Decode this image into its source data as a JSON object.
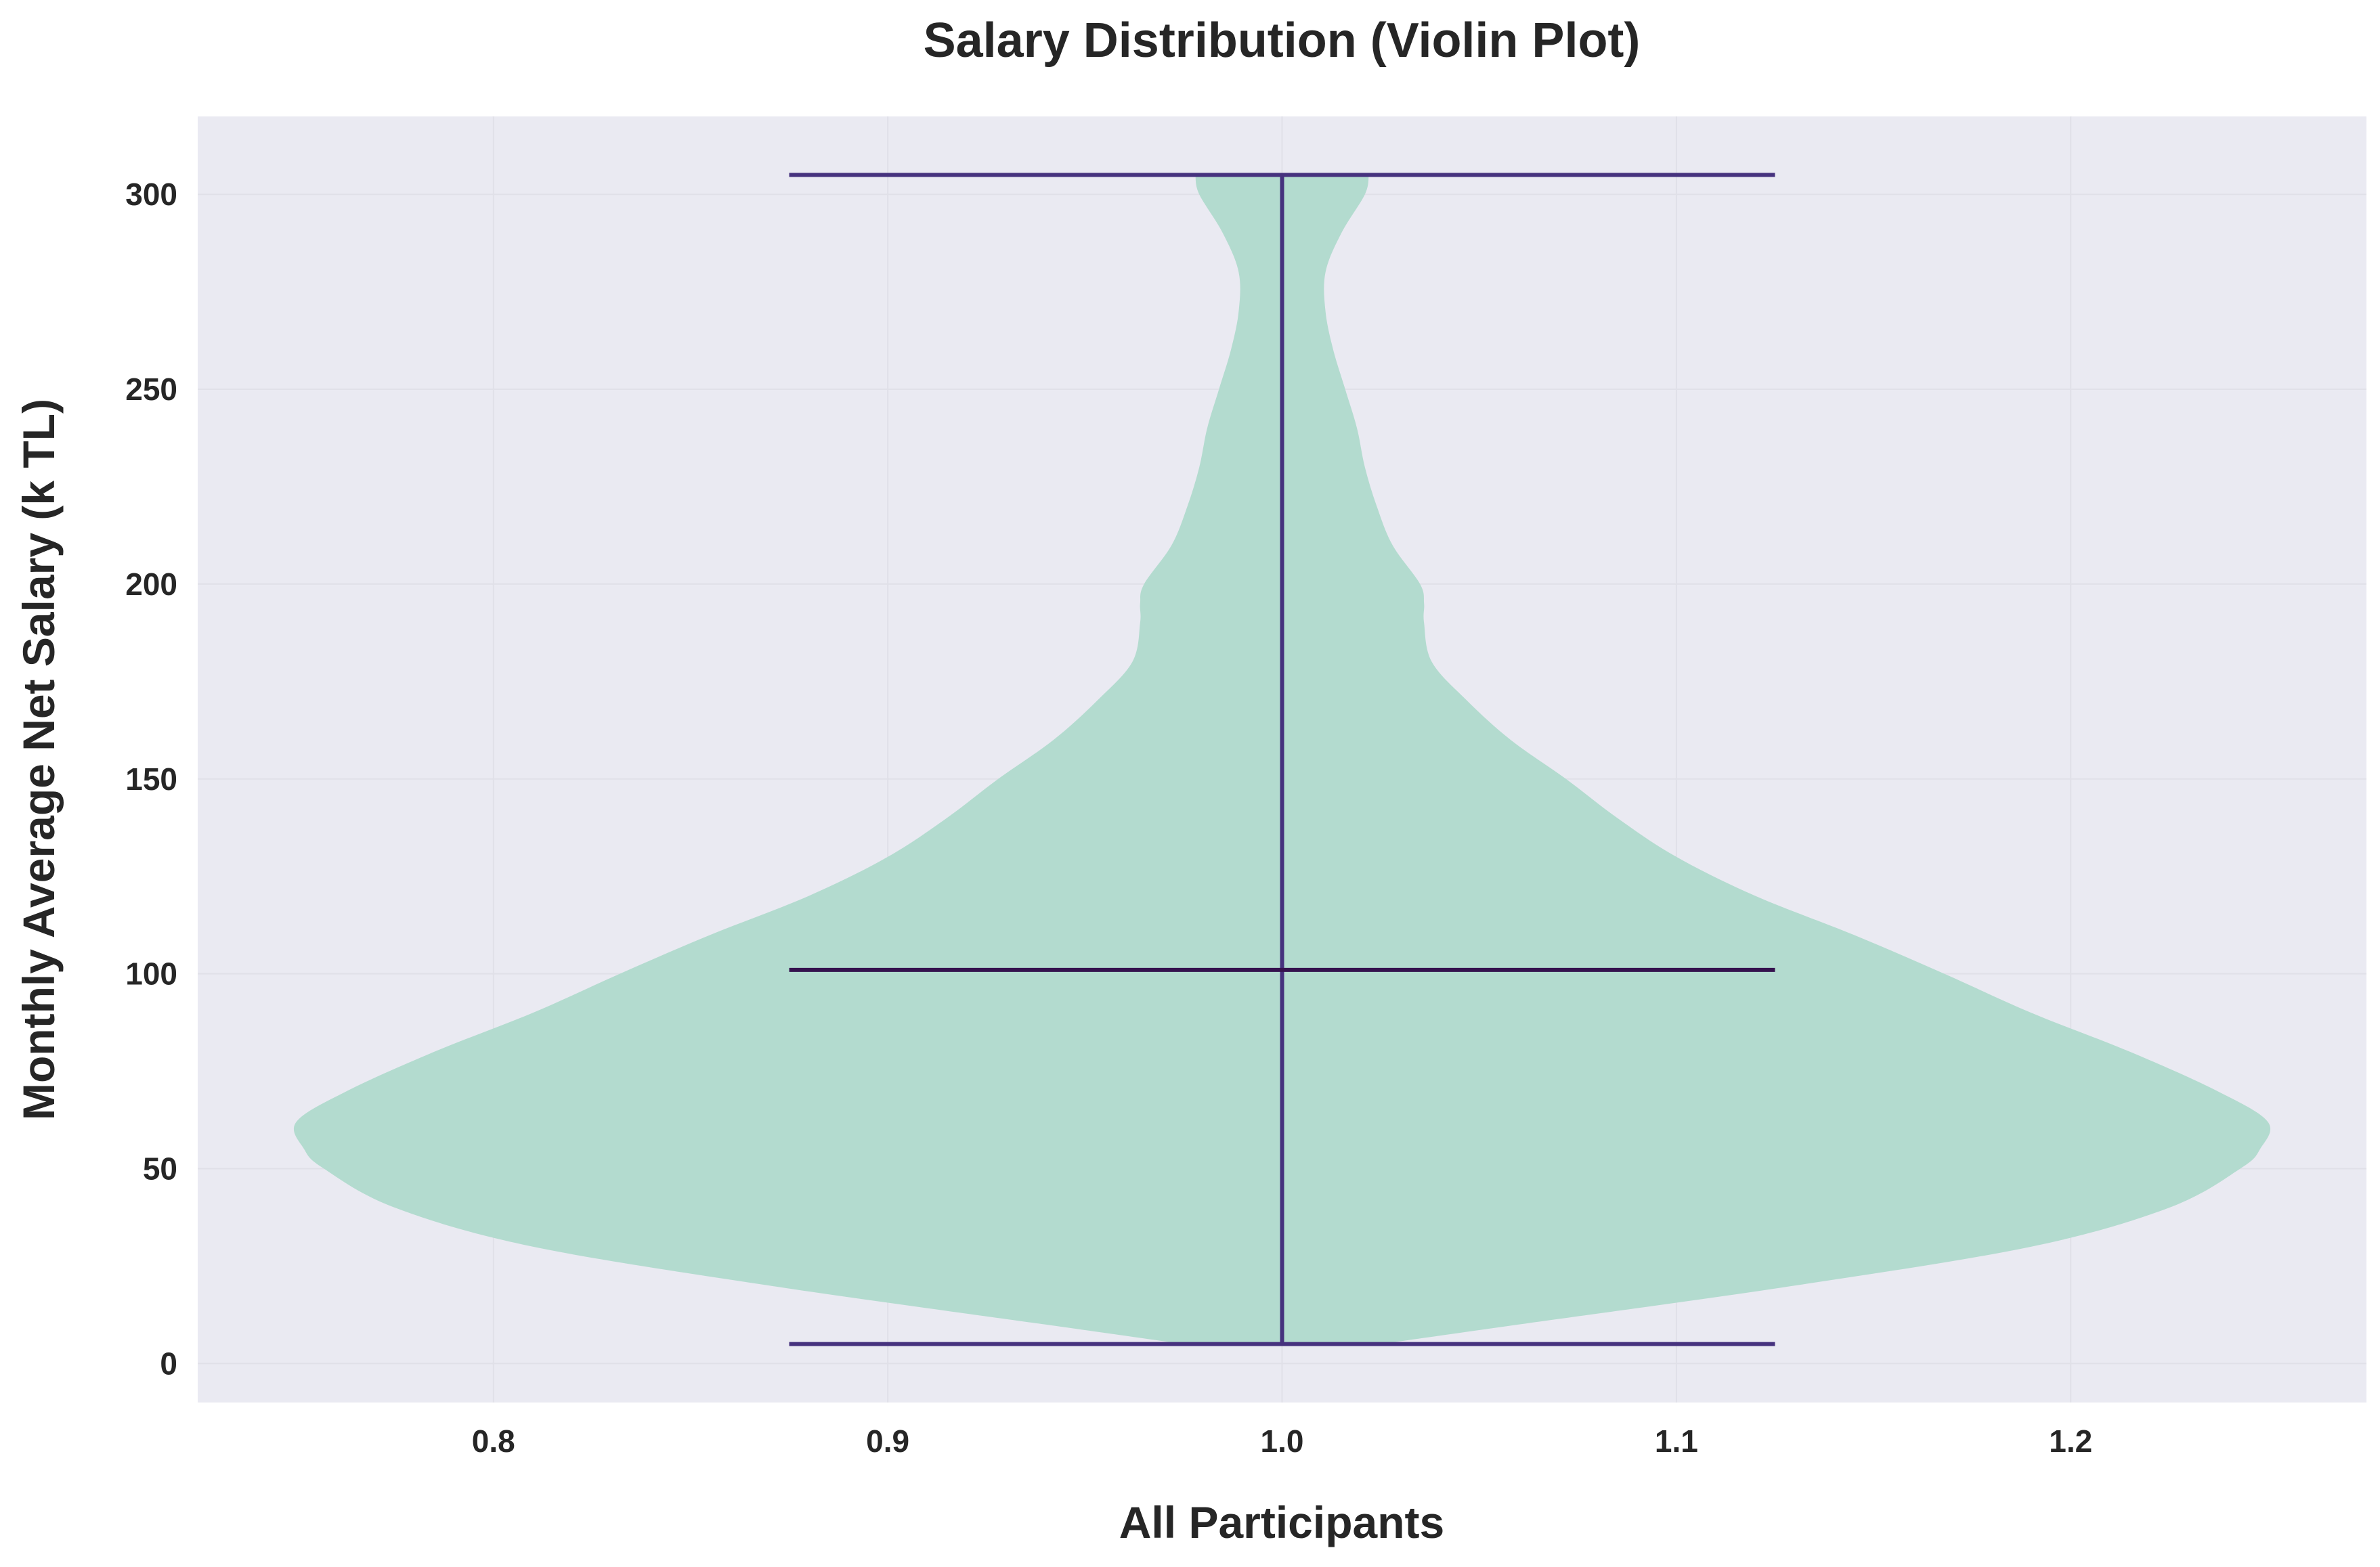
{
  "chart_data": {
    "type": "violin",
    "title": "Salary Distribution (Violin Plot)",
    "xlabel": "All Participants",
    "ylabel": "Monthly Average Net Salary (k TL)",
    "xlim": [
      0.725,
      1.275
    ],
    "ylim": [
      -10,
      320
    ],
    "xticks": [
      "0.8",
      "0.9",
      "1.0",
      "1.1",
      "1.2"
    ],
    "xtick_values": [
      0.8,
      0.9,
      1.0,
      1.1,
      1.2
    ],
    "yticks": [
      "0",
      "50",
      "100",
      "150",
      "200",
      "250",
      "300"
    ],
    "ytick_values": [
      0,
      50,
      100,
      150,
      200,
      250,
      300
    ],
    "grid": true,
    "violin": {
      "position": 1.0,
      "min": 5,
      "median": 101,
      "max": 305,
      "whisker_halfwidth": 0.125,
      "density_profile": [
        {
          "y": 5,
          "halfwidth": 0.025
        },
        {
          "y": 10,
          "halfwidth": 0.06
        },
        {
          "y": 20,
          "halfwidth": 0.13
        },
        {
          "y": 30,
          "halfwidth": 0.19
        },
        {
          "y": 40,
          "halfwidth": 0.225
        },
        {
          "y": 50,
          "halfwidth": 0.243
        },
        {
          "y": 55,
          "halfwidth": 0.248
        },
        {
          "y": 62,
          "halfwidth": 0.25
        },
        {
          "y": 70,
          "halfwidth": 0.237
        },
        {
          "y": 80,
          "halfwidth": 0.215
        },
        {
          "y": 90,
          "halfwidth": 0.19
        },
        {
          "y": 100,
          "halfwidth": 0.168
        },
        {
          "y": 110,
          "halfwidth": 0.145
        },
        {
          "y": 120,
          "halfwidth": 0.12
        },
        {
          "y": 130,
          "halfwidth": 0.1
        },
        {
          "y": 140,
          "halfwidth": 0.085
        },
        {
          "y": 150,
          "halfwidth": 0.072
        },
        {
          "y": 160,
          "halfwidth": 0.058
        },
        {
          "y": 170,
          "halfwidth": 0.047
        },
        {
          "y": 180,
          "halfwidth": 0.038
        },
        {
          "y": 190,
          "halfwidth": 0.036
        },
        {
          "y": 195,
          "halfwidth": 0.036
        },
        {
          "y": 200,
          "halfwidth": 0.035
        },
        {
          "y": 210,
          "halfwidth": 0.028
        },
        {
          "y": 220,
          "halfwidth": 0.024
        },
        {
          "y": 230,
          "halfwidth": 0.021
        },
        {
          "y": 240,
          "halfwidth": 0.019
        },
        {
          "y": 250,
          "halfwidth": 0.016
        },
        {
          "y": 260,
          "halfwidth": 0.013
        },
        {
          "y": 270,
          "halfwidth": 0.011
        },
        {
          "y": 280,
          "halfwidth": 0.011
        },
        {
          "y": 290,
          "halfwidth": 0.015
        },
        {
          "y": 300,
          "halfwidth": 0.021
        },
        {
          "y": 305,
          "halfwidth": 0.022
        }
      ]
    },
    "colors": {
      "background": "#EAEAF2",
      "violin_fill": "#B3DBCF",
      "lines": "#46327E",
      "median_line": "#35124E",
      "grid": "#E0E0E8"
    }
  }
}
